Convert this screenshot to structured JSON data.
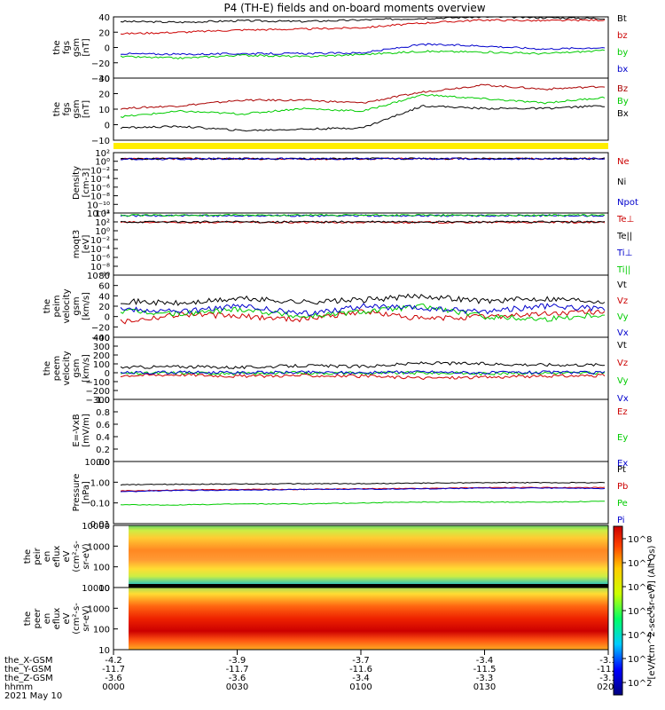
{
  "title": "P4 (TH-E) fields and on-board moments overview",
  "footer": {
    "row_labels": [
      "the_X-GSM",
      "the_Y-GSM",
      "the_Z-GSM",
      "hhmm",
      "2021 May 10"
    ],
    "columns": [
      {
        "x": "-4.2",
        "y": "-11.7",
        "z": "-3.6",
        "t": "0000"
      },
      {
        "x": "-3.9",
        "y": "-11.7",
        "z": "-3.6",
        "t": "0030"
      },
      {
        "x": "-3.7",
        "y": "-11.6",
        "z": "-3.4",
        "t": "0100"
      },
      {
        "x": "-3.4",
        "y": "-11.5",
        "z": "-3.3",
        "t": "0130"
      },
      {
        "x": "-3.1",
        "y": "-11.5",
        "z": "-3.1",
        "t": "0200"
      }
    ]
  },
  "colorbar": {
    "label": "[eV/(cm^2-sec-sr-eV)] (All Qs)",
    "ticks": [
      "10^8",
      "10^7",
      "10^6",
      "10^5",
      "10^4",
      "10^3",
      "10^2"
    ]
  },
  "chart_data": [
    {
      "type": "line",
      "ylabel": [
        "the",
        "fgs",
        "gsm",
        "[nT]"
      ],
      "yticks": [
        "40",
        "20",
        "0",
        "−20",
        "−40"
      ],
      "ylim": [
        -40,
        40
      ],
      "series": [
        {
          "name": "Bt",
          "color": "#000000",
          "values": [
            34,
            33,
            35,
            34,
            36,
            38,
            40,
            39,
            38
          ]
        },
        {
          "name": "bz",
          "color": "#cc0000",
          "values": [
            18,
            20,
            23,
            24,
            26,
            32,
            36,
            35,
            36
          ]
        },
        {
          "name": "by",
          "color": "#00cc00",
          "values": [
            -12,
            -14,
            -10,
            -12,
            -9,
            -5,
            -6,
            -8,
            -4
          ]
        },
        {
          "name": "bx",
          "color": "#0000cc",
          "values": [
            -8,
            -9,
            -8,
            -8,
            -7,
            4,
            2,
            -2,
            0
          ]
        }
      ]
    },
    {
      "type": "line",
      "ylabel": [
        "the",
        "fgs",
        "gsm",
        "[nT]"
      ],
      "yticks": [
        "30",
        "20",
        "10",
        "0",
        "−10"
      ],
      "ylim": [
        -15,
        30
      ],
      "series": [
        {
          "name": "Bz",
          "color": "#aa0000",
          "values": [
            8,
            10,
            14,
            14,
            12,
            20,
            25,
            22,
            24
          ]
        },
        {
          "name": "By",
          "color": "#00cc00",
          "values": [
            2,
            6,
            4,
            8,
            6,
            18,
            15,
            12,
            16
          ]
        },
        {
          "name": "Bx",
          "color": "#000000",
          "values": [
            -6,
            -5,
            -8,
            -7,
            -6,
            10,
            8,
            8,
            10
          ]
        }
      ]
    },
    {
      "type": "line",
      "ylabel": [
        "Density",
        "[cm-3]"
      ],
      "yticks": [
        "10²",
        "10⁰",
        "10⁻²",
        "10⁻⁴",
        "10⁻⁶",
        "10⁻⁸",
        "10⁻¹⁰",
        "10⁻¹²"
      ],
      "ylim": [
        -12,
        2
      ],
      "series": [
        {
          "name": "Ne",
          "color": "#cc0000",
          "values": [
            0.5,
            0.6,
            0.6,
            0.5,
            0.6,
            0.6,
            0.6,
            0.6,
            0.6
          ]
        },
        {
          "name": "Ni",
          "color": "#000000",
          "values": [
            0.55,
            0.6,
            0.6,
            0.6,
            0.6,
            0.6,
            0.6,
            0.6,
            0.6
          ]
        },
        {
          "name": "Npot",
          "color": "#0000cc",
          "values": [
            0.5,
            0.55,
            0.6,
            0.6,
            0.55,
            0.6,
            0.55,
            0.6,
            0.6
          ]
        }
      ]
    },
    {
      "type": "line",
      "ylabel": [
        "moqt3",
        "[eV]"
      ],
      "yticks": [
        "10⁴",
        "10²",
        "10⁰",
        "10⁻²",
        "10⁻⁴",
        "10⁻⁶",
        "10⁻⁸",
        "10⁻¹⁰"
      ],
      "ylim": [
        -10,
        4
      ],
      "series": [
        {
          "name": "Te⊥",
          "color": "#cc0000",
          "values": [
            1.9,
            1.9,
            1.9,
            1.9,
            1.9,
            1.9,
            1.9,
            1.9,
            1.9
          ]
        },
        {
          "name": "Te||",
          "color": "#000000",
          "values": [
            2.0,
            2.0,
            2.0,
            2.0,
            2.0,
            2.0,
            2.0,
            2.0,
            2.0
          ]
        },
        {
          "name": "Ti⊥",
          "color": "#0000cc",
          "values": [
            3.4,
            3.4,
            3.4,
            3.4,
            3.4,
            3.4,
            3.4,
            3.4,
            3.4
          ]
        },
        {
          "name": "Ti||",
          "color": "#00cc00",
          "values": [
            3.5,
            3.5,
            3.5,
            3.5,
            3.5,
            3.5,
            3.5,
            3.5,
            3.5
          ]
        }
      ]
    },
    {
      "type": "line",
      "ylabel": [
        "the",
        "peim",
        "velocity",
        "gsm",
        "[km/s]"
      ],
      "yticks": [
        "80",
        "60",
        "40",
        "20",
        "0",
        "−20",
        "−40"
      ],
      "ylim": [
        -40,
        80
      ],
      "series": [
        {
          "name": "Vt",
          "color": "#000000",
          "values": [
            30,
            25,
            35,
            28,
            32,
            40,
            30,
            35,
            30
          ]
        },
        {
          "name": "Vz",
          "color": "#cc0000",
          "values": [
            -10,
            5,
            0,
            -5,
            10,
            -5,
            0,
            5,
            10
          ]
        },
        {
          "name": "Vy",
          "color": "#00cc00",
          "values": [
            10,
            5,
            15,
            0,
            10,
            20,
            0,
            -5,
            5
          ]
        },
        {
          "name": "Vx",
          "color": "#0000cc",
          "values": [
            15,
            10,
            20,
            5,
            20,
            15,
            10,
            20,
            15
          ]
        }
      ]
    },
    {
      "type": "line",
      "ylabel": [
        "the",
        "peem",
        "velocity",
        "gsm",
        "[km/s]"
      ],
      "yticks": [
        "400",
        "300",
        "200",
        "100",
        "0",
        "−100",
        "−200",
        "−300"
      ],
      "ylim": [
        -300,
        400
      ],
      "series": [
        {
          "name": "Vt",
          "color": "#000000",
          "values": [
            60,
            70,
            60,
            80,
            70,
            110,
            100,
            90,
            90
          ]
        },
        {
          "name": "Vz",
          "color": "#cc0000",
          "values": [
            -30,
            -20,
            -40,
            -30,
            -40,
            -60,
            -50,
            -40,
            -30
          ]
        },
        {
          "name": "Vy",
          "color": "#00cc00",
          "values": [
            -10,
            0,
            -10,
            0,
            -5,
            0,
            -10,
            0,
            -5
          ]
        },
        {
          "name": "Vx",
          "color": "#0000cc",
          "values": [
            0,
            5,
            0,
            5,
            0,
            10,
            0,
            5,
            0
          ]
        }
      ]
    },
    {
      "type": "line",
      "ylabel": [
        "E=-VxB",
        "[mV/m]"
      ],
      "yticks": [
        "1.0",
        "0.8",
        "0.6",
        "0.4",
        "0.2",
        "0.0"
      ],
      "ylim": [
        0,
        1
      ],
      "series": [
        {
          "name": "Ez",
          "color": "#cc0000",
          "values": []
        },
        {
          "name": "Ey",
          "color": "#00cc00",
          "values": []
        },
        {
          "name": "Ex",
          "color": "#0000cc",
          "values": []
        }
      ]
    },
    {
      "type": "line",
      "ylabel": [
        "Pressure",
        "[nPa]"
      ],
      "yticks": [
        "10.00",
        "1.00",
        "0.10",
        "0.01"
      ],
      "ylim": [
        -2,
        1
      ],
      "log": true,
      "series": [
        {
          "name": "Pt",
          "color": "#000000",
          "values": [
            0.75,
            0.8,
            0.82,
            0.85,
            0.85,
            0.9,
            0.95,
            0.95,
            0.95
          ]
        },
        {
          "name": "Pb",
          "color": "#cc0000",
          "values": [
            0.38,
            0.42,
            0.45,
            0.45,
            0.48,
            0.5,
            0.55,
            0.55,
            0.55
          ]
        },
        {
          "name": "Pe",
          "color": "#00cc00",
          "values": [
            0.08,
            0.08,
            0.09,
            0.09,
            0.1,
            0.11,
            0.11,
            0.11,
            0.12
          ]
        },
        {
          "name": "Pi",
          "color": "#0000cc",
          "values": [
            0.35,
            0.4,
            0.42,
            0.45,
            0.46,
            0.48,
            0.52,
            0.52,
            0.5
          ]
        }
      ]
    },
    {
      "type": "heatmap",
      "ylabel": [
        "the",
        "peir",
        "en",
        "eflux",
        "eV",
        "(cm²-s-",
        "sr-eV)"
      ],
      "yticks": [
        "10000",
        "1000",
        "100",
        "10"
      ],
      "ylim": [
        1,
        4.3
      ],
      "log": true
    },
    {
      "type": "heatmap",
      "ylabel": [
        "the",
        "peer",
        "en",
        "eflux",
        "eV",
        "(cm²-s-",
        "sr-eV)"
      ],
      "yticks": [
        "10000",
        "1000",
        "100",
        "10"
      ],
      "ylim": [
        1,
        4.3
      ],
      "log": true
    }
  ]
}
